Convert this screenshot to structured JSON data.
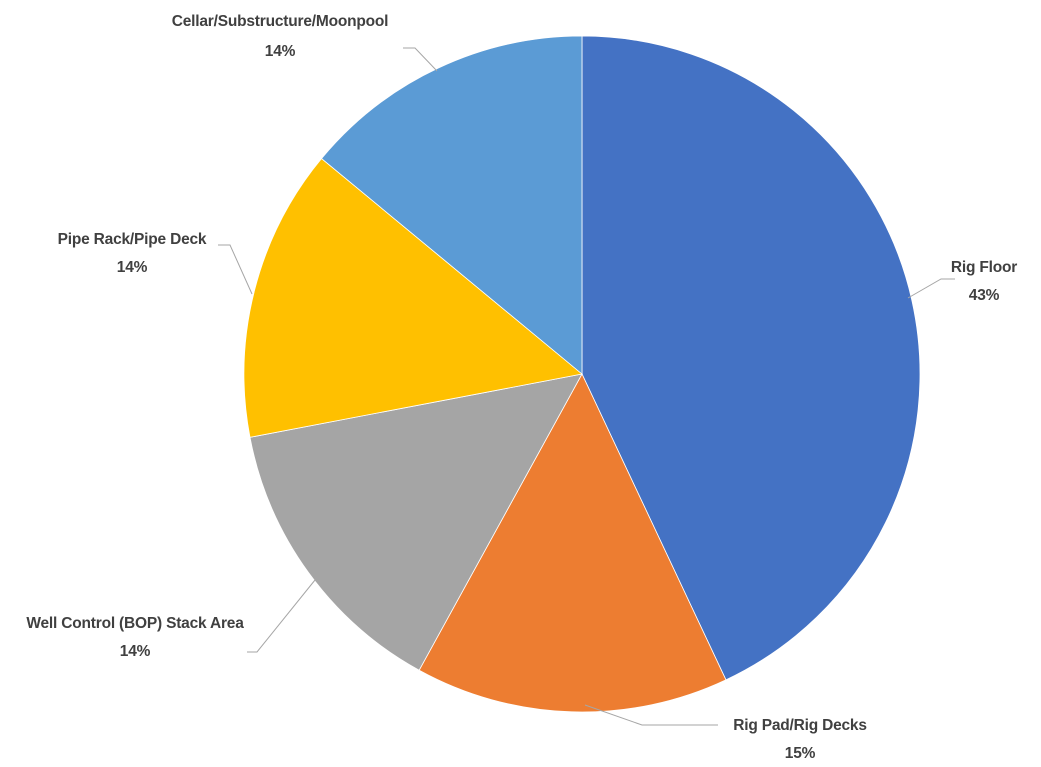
{
  "chart_data": {
    "type": "pie",
    "title": "",
    "slices": [
      {
        "label": "Rig Floor",
        "value_label": "43%",
        "value": 43,
        "color": "#4472C4"
      },
      {
        "label": "Rig Pad/Rig Decks",
        "value_label": "15%",
        "value": 15,
        "color": "#ED7D31"
      },
      {
        "label": "Well Control (BOP) Stack Area",
        "value_label": "14%",
        "value": 14,
        "color": "#A5A5A5"
      },
      {
        "label": "Pipe Rack/Pipe Deck",
        "value_label": "14%",
        "value": 14,
        "color": "#FFC000"
      },
      {
        "label": "Cellar/Substructure/Moonpool",
        "value_label": "14%",
        "value": 14,
        "color": "#5B9BD5"
      }
    ],
    "legend": "none",
    "data_labels": "outside-with-leader-lines"
  }
}
